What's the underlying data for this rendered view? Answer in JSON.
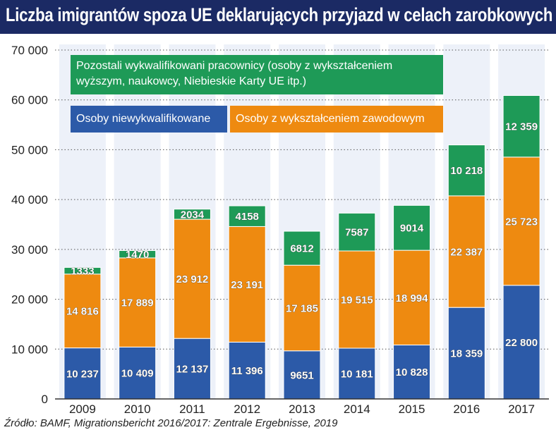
{
  "title": "Liczba imigrantów spoza UE deklarujących przyjazd w celach zarobkowych",
  "source": "Źródło: BAMF, Migrationsbericht 2016/2017: Zentrale Ergebnisse, 2019",
  "colors": {
    "title_bg": "#1b2a64",
    "unskilled": "#2c5aa8",
    "vocational": "#ee8a10",
    "skilled": "#1e9a57"
  },
  "chart_data": {
    "type": "bar",
    "stacked": true,
    "categories": [
      "2009",
      "2010",
      "2011",
      "2012",
      "2013",
      "2014",
      "2015",
      "2016",
      "2017"
    ],
    "series": [
      {
        "name": "Osoby niewykwalifikowane",
        "color": "#2c5aa8",
        "values": [
          10237,
          10409,
          12137,
          11396,
          9651,
          10181,
          10828,
          18359,
          22800
        ],
        "labels": [
          "10 237",
          "10 409",
          "12 137",
          "11 396",
          "9651",
          "10 181",
          "10 828",
          "18 359",
          "22 800"
        ]
      },
      {
        "name": "Osoby z wykształceniem zawodowym",
        "color": "#ee8a10",
        "values": [
          14816,
          17889,
          23912,
          23191,
          17185,
          19515,
          18994,
          22387,
          25723
        ],
        "labels": [
          "14 816",
          "17 889",
          "23 912",
          "23 191",
          "17 185",
          "19 515",
          "18 994",
          "22 387",
          "25 723"
        ]
      },
      {
        "name": "Pozostali wykwalifikowani pracownicy (osoby z wykształceniem wyższym, naukowcy, Niebieskie Karty UE itp.)",
        "color": "#1e9a57",
        "values": [
          1333,
          1470,
          2034,
          4158,
          6812,
          7587,
          9014,
          10218,
          12359
        ],
        "labels": [
          "1333",
          "1470",
          "2034",
          "4158",
          "6812",
          "7587",
          "9014",
          "10 218",
          "12 359"
        ]
      }
    ],
    "ylim": [
      0,
      70000
    ],
    "yticks": [
      0,
      10000,
      20000,
      30000,
      40000,
      50000,
      60000,
      70000
    ],
    "ytick_labels": [
      "0",
      "10 000",
      "20 000",
      "30 000",
      "40 000",
      "50 000",
      "60 000",
      "70 000"
    ],
    "grid": "horizontal dotted",
    "legend_placement": "top-left"
  },
  "legend": {
    "skilled_line1": "Pozostali wykwalifikowani pracownicy (osoby z wykształceniem",
    "skilled_line2": "wyższym, naukowcy, Niebieskie Karty UE itp.)",
    "unskilled": "Osoby niewykwalifikowane",
    "vocational": "Osoby z wykształceniem zawodowym"
  }
}
